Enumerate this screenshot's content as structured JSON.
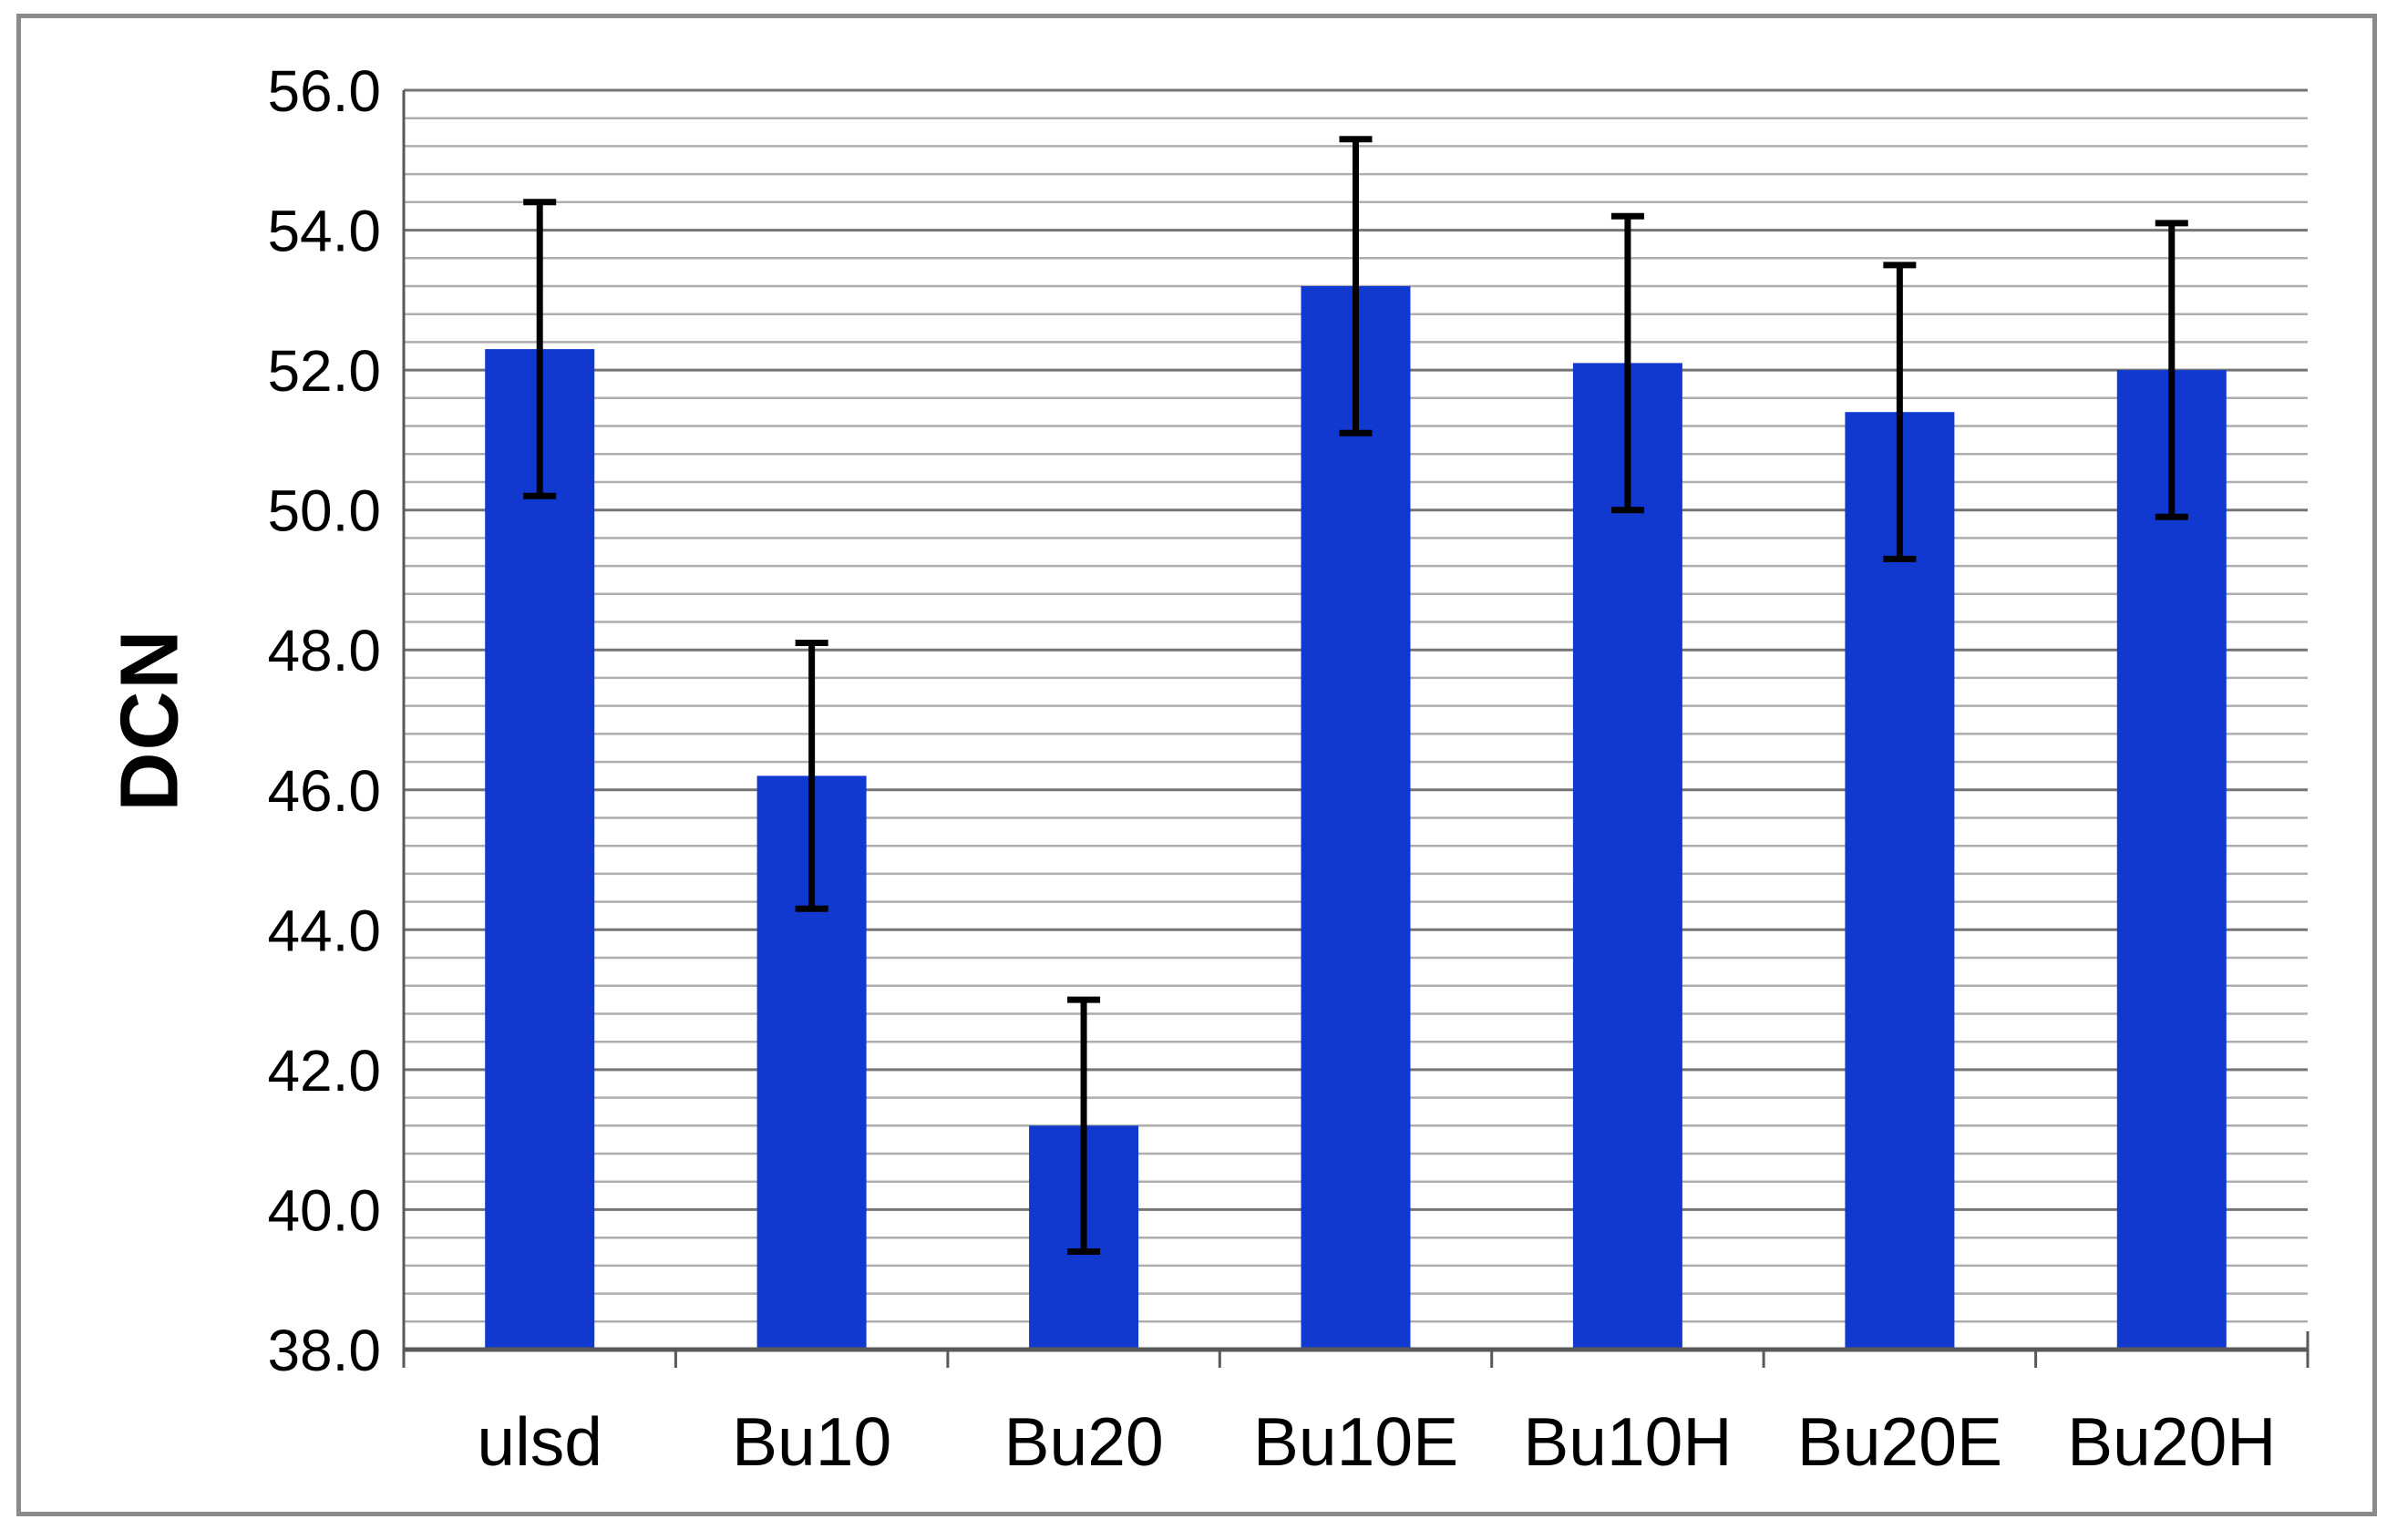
{
  "figure": {
    "background": "#ffffff",
    "frame_color": "#8a8a8a"
  },
  "chart_data": {
    "type": "bar",
    "title": "",
    "xlabel": "",
    "ylabel": "DCN",
    "categories": [
      "ulsd",
      "Bu10",
      "Bu20",
      "Bu10E",
      "Bu10H",
      "Bu20E",
      "Bu20H"
    ],
    "values": [
      52.3,
      46.2,
      41.2,
      53.2,
      52.1,
      51.4,
      52.0
    ],
    "error_high": [
      54.4,
      48.1,
      43.0,
      55.3,
      54.2,
      53.5,
      54.1
    ],
    "error_low": [
      50.2,
      44.3,
      39.4,
      51.1,
      50.0,
      49.3,
      49.9
    ],
    "ylim": [
      38.0,
      56.0
    ],
    "ytick_step": 2.0,
    "ytick_labels": [
      "38.0",
      "40.0",
      "42.0",
      "44.0",
      "46.0",
      "48.0",
      "50.0",
      "52.0",
      "54.0",
      "56.0"
    ],
    "minor_grid_step": 0.4,
    "grid": "horizontal major and minor lines, on",
    "legend": "none",
    "bar_color": "#1139d0",
    "error_color": "#000000",
    "major_grid_color": "#757575",
    "minor_grid_color": "#aeaeae",
    "axis_color": "#595959",
    "tick_label_color": "#000000"
  }
}
